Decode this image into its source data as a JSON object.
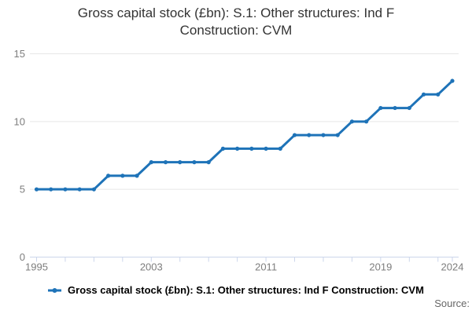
{
  "title": "Gross capital stock (£bn): S.1: Other structures: Ind F Construction: CVM",
  "chart_data": {
    "type": "line",
    "x": [
      1995,
      1996,
      1997,
      1998,
      1999,
      2000,
      2001,
      2002,
      2003,
      2004,
      2005,
      2006,
      2007,
      2008,
      2009,
      2010,
      2011,
      2012,
      2013,
      2014,
      2015,
      2016,
      2017,
      2018,
      2019,
      2020,
      2021,
      2022,
      2023,
      2024
    ],
    "series": [
      {
        "name": "Gross capital stock (£bn): S.1: Other structures: Ind F Construction: CVM",
        "color": "#1e73b8",
        "values": [
          5,
          5,
          5,
          5,
          5,
          6,
          6,
          6,
          7,
          7,
          7,
          7,
          7,
          8,
          8,
          8,
          8,
          8,
          9,
          9,
          9,
          9,
          10,
          10,
          11,
          11,
          11,
          12,
          12,
          13
        ]
      }
    ],
    "title": "Gross capital stock (£bn): S.1: Other structures: Ind F Construction: CVM",
    "xlabel": "",
    "ylabel": "",
    "ylim": [
      0,
      15
    ],
    "yticks": [
      0,
      5,
      10,
      15
    ],
    "xtick_labels": [
      1995,
      2003,
      2011,
      2019,
      2024
    ],
    "tick_interval_years": 2,
    "grid": "horizontal",
    "legend_position": "bottom-center",
    "colors": {
      "series": "#1e73b8",
      "gridline": "#e6e6e6",
      "axis": "#ccd6eb",
      "axis_label": "#7d7d7d",
      "title_text": "#333333",
      "legend_text": "#000000",
      "source_text": "#666666"
    }
  },
  "footer": {
    "source_label": "Source:"
  }
}
